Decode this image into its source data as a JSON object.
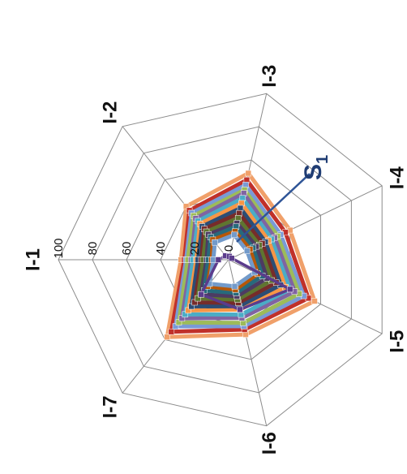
{
  "chart_data": {
    "type": "radar",
    "orientation_note": "rotated",
    "axes": [
      "I-1",
      "I-2",
      "I-3",
      "I-4",
      "I-5",
      "I-6",
      "I-7"
    ],
    "rlim": [
      0,
      100
    ],
    "radial_ticks": [
      "0",
      "20",
      "40",
      "60",
      "80",
      "100"
    ],
    "annotation": {
      "text": "S",
      "subscript": "1"
    },
    "grid": true,
    "series": [
      {
        "color": "#f0a06a",
        "values": [
          28,
          40,
          52,
          40,
          56,
          45,
          58
        ]
      },
      {
        "color": "#c0302a",
        "values": [
          26,
          37,
          48,
          37,
          52,
          42,
          54
        ]
      },
      {
        "color": "#7a9ad6",
        "values": [
          25,
          35,
          45,
          34,
          49,
          40,
          50
        ]
      },
      {
        "color": "#9dbb59",
        "values": [
          24,
          33,
          42,
          32,
          46,
          38,
          47
        ]
      },
      {
        "color": "#8064a2",
        "values": [
          22,
          31,
          40,
          30,
          43,
          35,
          44
        ]
      },
      {
        "color": "#4bacc6",
        "values": [
          21,
          29,
          37,
          28,
          40,
          33,
          41
        ]
      },
      {
        "color": "#f79646",
        "values": [
          19,
          27,
          34,
          26,
          37,
          30,
          38
        ]
      },
      {
        "color": "#2c4d75",
        "values": [
          18,
          25,
          31,
          24,
          34,
          28,
          35
        ]
      },
      {
        "color": "#772c2a",
        "values": [
          16,
          23,
          28,
          22,
          31,
          26,
          32
        ]
      },
      {
        "color": "#5f7530",
        "values": [
          15,
          21,
          25,
          20,
          28,
          24,
          29
        ]
      },
      {
        "color": "#4d3b62",
        "values": [
          13,
          19,
          22,
          18,
          25,
          22,
          26
        ]
      },
      {
        "color": "#276a7c",
        "values": [
          12,
          17,
          20,
          16,
          22,
          20,
          23
        ]
      },
      {
        "color": "#b65708",
        "values": [
          10,
          15,
          17,
          14,
          19,
          18,
          20
        ]
      },
      {
        "color": "#729aca",
        "values": [
          9,
          13,
          15,
          12,
          17,
          16,
          18
        ]
      },
      {
        "color": "#5b3c8c",
        "values": [
          6,
          3,
          2,
          2,
          40,
          30,
          26
        ]
      }
    ]
  }
}
